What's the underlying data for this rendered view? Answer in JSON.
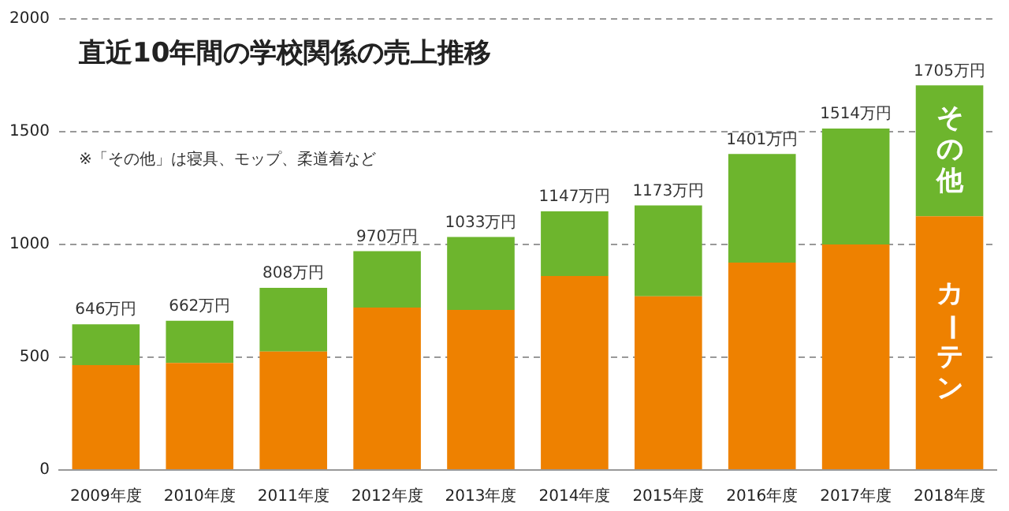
{
  "chart_data": {
    "type": "bar",
    "title": "直近10年間の学校関係の売上推移",
    "annotations": [
      "※「その他」は寝具、モップ、柔道着など"
    ],
    "categories": [
      "2009年度",
      "2010年度",
      "2011年度",
      "2012年度",
      "2013年度",
      "2014年度",
      "2015年度",
      "2016年度",
      "2017年度",
      "2018年度"
    ],
    "stacked": true,
    "series": [
      {
        "name": "カーテン",
        "color": "#ee8100",
        "values": [
          465,
          475,
          525,
          720,
          710,
          860,
          770,
          920,
          1000,
          1125
        ]
      },
      {
        "name": "その他",
        "color": "#6db52d",
        "values": [
          181,
          187,
          283,
          250,
          323,
          287,
          403,
          481,
          514,
          580
        ]
      }
    ],
    "totals": [
      "646万円",
      "662万円",
      "808万円",
      "970万円",
      "1033万円",
      "1147万円",
      "1173万円",
      "1401万円",
      "1514万円",
      "1705万円"
    ],
    "ylim": [
      0,
      2000
    ],
    "yticks": [
      0,
      500,
      1000,
      1500,
      2000
    ],
    "grid": "y",
    "legend": false
  }
}
